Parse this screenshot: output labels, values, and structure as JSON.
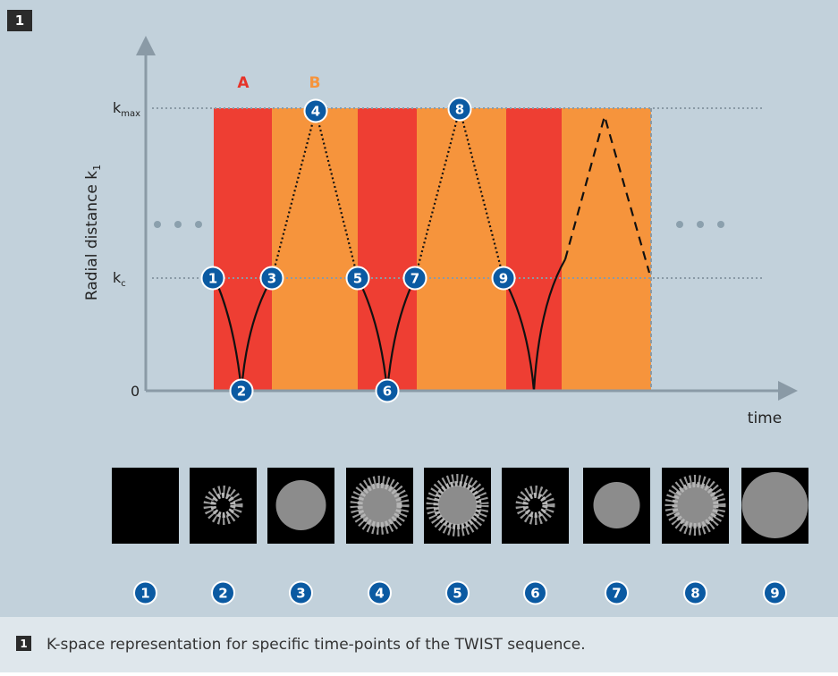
{
  "figure_label": "1",
  "diagram": {
    "region_labels": [
      "A",
      "B"
    ],
    "y_axis": {
      "label": "Radial distance k",
      "label_sub": "1",
      "ticks": [
        {
          "main": "k",
          "sub": "max"
        },
        {
          "main": "k",
          "sub": "c"
        },
        {
          "main": "0"
        }
      ]
    },
    "x_axis": {
      "label": "time"
    },
    "points": [
      "1",
      "2",
      "3",
      "4",
      "5",
      "6",
      "7",
      "8",
      "9"
    ]
  },
  "thumbnails": {
    "labels": [
      "1",
      "2",
      "3",
      "4",
      "5",
      "6",
      "7",
      "8",
      "9"
    ]
  },
  "caption": {
    "label": "1",
    "text": "K-space representation for specific time-points of the TWIST sequence."
  }
}
